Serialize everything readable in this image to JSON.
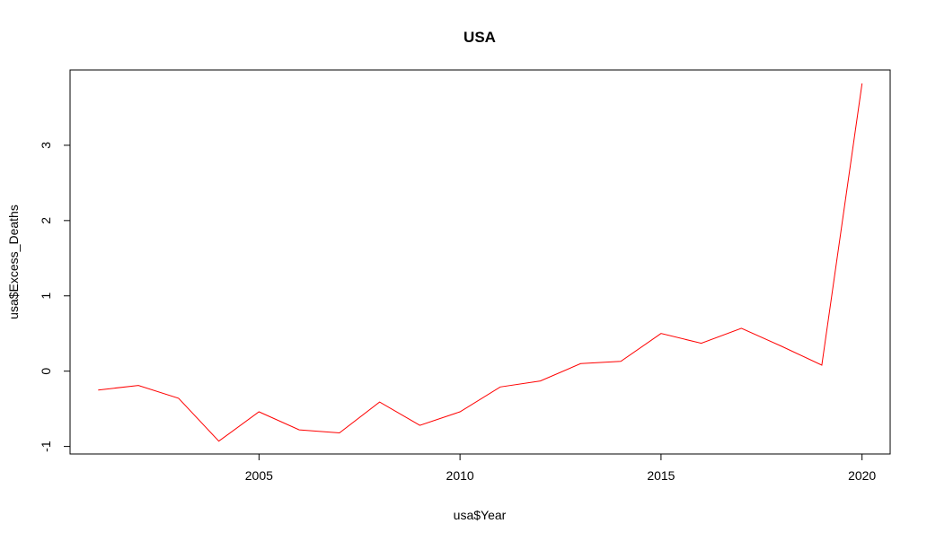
{
  "chart_data": {
    "type": "line",
    "title": "USA",
    "xlabel": "usa$Year",
    "ylabel": "usa$Excess_Deaths",
    "xlim": [
      2000.3,
      2020.7
    ],
    "ylim": [
      -1.1,
      4.0
    ],
    "x_ticks": [
      2005,
      2010,
      2015,
      2020
    ],
    "y_ticks": [
      -1,
      0,
      1,
      2,
      3
    ],
    "grid": false,
    "legend": "none",
    "series": [
      {
        "color": "#ff0000",
        "x": [
          2001,
          2002,
          2003,
          2004,
          2005,
          2006,
          2007,
          2008,
          2009,
          2010,
          2011,
          2012,
          2013,
          2014,
          2015,
          2016,
          2017,
          2018,
          2019,
          2020
        ],
        "values": [
          -0.25,
          -0.19,
          -0.36,
          -0.93,
          -0.54,
          -0.78,
          -0.82,
          -0.41,
          -0.72,
          -0.54,
          -0.21,
          -0.13,
          0.1,
          0.13,
          0.5,
          0.37,
          0.57,
          0.33,
          0.08,
          3.82
        ]
      }
    ]
  }
}
